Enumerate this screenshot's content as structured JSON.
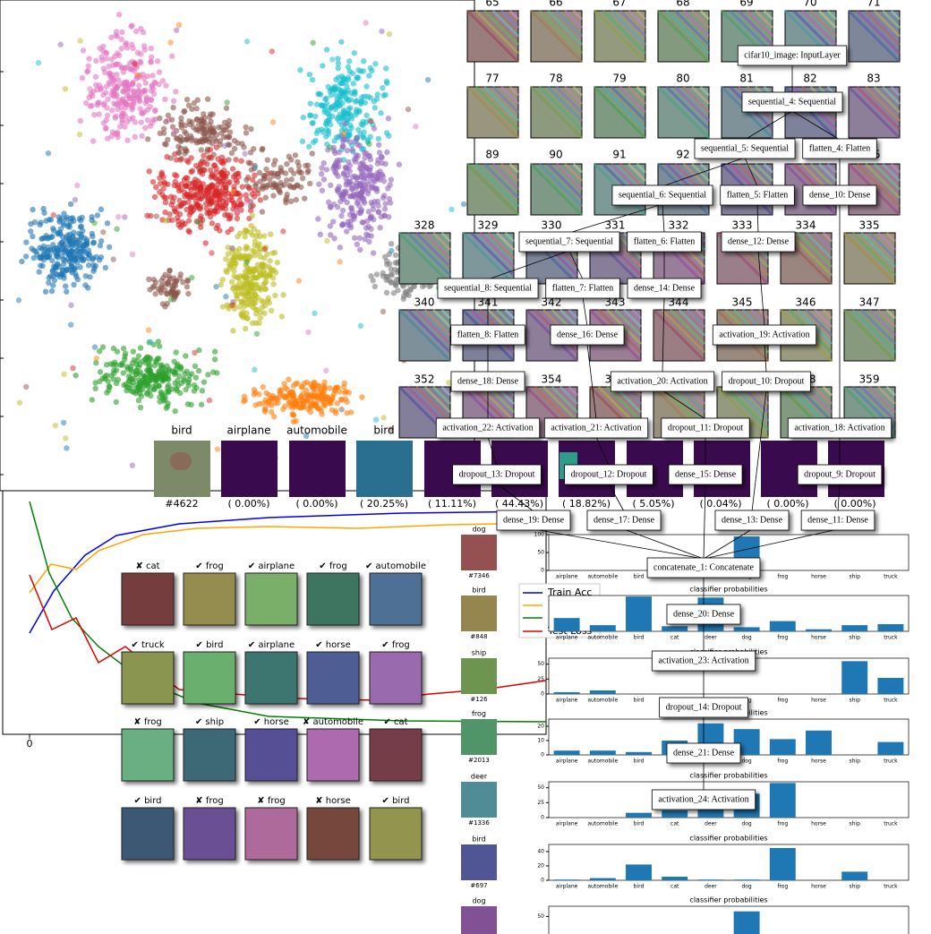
{
  "filters": {
    "rows": [
      [
        "65",
        "66",
        "67",
        "68",
        "69",
        "70",
        "71"
      ],
      [
        "77",
        "78",
        "79",
        "80",
        "81",
        "82",
        "83"
      ],
      [
        "89",
        "90",
        "91",
        "92",
        "93",
        "94",
        "95"
      ],
      [
        "328",
        "329",
        "330",
        "331",
        "332",
        "333",
        "334",
        "335"
      ],
      [
        "340",
        "341",
        "342",
        "343",
        "344",
        "345",
        "346",
        "347"
      ],
      [
        "352",
        "353",
        "354",
        "355",
        "356",
        "357",
        "358",
        "359"
      ]
    ]
  },
  "graph": {
    "nodes": [
      "cifar10_image: InputLayer",
      "sequential_4: Sequential",
      "sequential_5: Sequential",
      "flatten_4: Flatten",
      "sequential_6: Sequential",
      "flatten_5: Flatten",
      "dense_10: Dense",
      "sequential_7: Sequential",
      "flatten_6: Flatten",
      "dense_12: Dense",
      "sequential_8: Sequential",
      "flatten_7: Flatten",
      "dense_14: Dense",
      "flatten_8: Flatten",
      "dense_16: Dense",
      "activation_19: Activation",
      "dense_18: Dense",
      "activation_20: Activation",
      "dropout_10: Dropout",
      "activation_22: Activation",
      "activation_21: Activation",
      "dropout_11: Dropout",
      "activation_18: Activation",
      "dropout_13: Dropout",
      "dropout_12: Dropout",
      "dense_15: Dense",
      "dropout_9: Dropout",
      "dense_19: Dense",
      "dense_17: Dense",
      "dense_13: Dense",
      "dense_11: Dense",
      "concatenate_1: Concatenate",
      "dense_20: Dense",
      "activation_23: Activation",
      "dropout_14: Dropout",
      "dense_21: Dense",
      "activation_24: Activation"
    ]
  },
  "prediction": {
    "labels": [
      "bird",
      "airplane",
      "automobile",
      "bird"
    ],
    "id": "#4622",
    "scores": [
      "( 0.00%)",
      "( 0.00%)",
      "( 20.25%)",
      "( 11.11%)",
      "( 44.43%)",
      "( 18.82%)",
      "( 5.05%)",
      "( 0.04%)",
      "( 0.00%)",
      "( 0.00%)"
    ]
  },
  "training": {
    "legend": [
      "Train Acc",
      "Test Loss"
    ],
    "xtick": "0"
  },
  "samples": {
    "captions": [
      [
        "✘ cat",
        "✔ frog",
        "✔ airplane",
        "✔ frog",
        "✔ automobile"
      ],
      [
        "✔ truck",
        "✔ bird",
        "✔ airplane",
        "✔ horse",
        "✔ frog"
      ],
      [
        "✘ frog",
        "✔ ship",
        "✔ horse",
        "✘ automobile",
        "✔ cat"
      ],
      [
        "✔ bird",
        "✘ frog",
        "✘ frog",
        "✘ horse",
        "✔ bird"
      ]
    ]
  },
  "chart_data": [
    {
      "type": "bar",
      "label": "dog",
      "id": "#7346",
      "categories": [
        "airplane",
        "automobile",
        "bird",
        "cat",
        "deer",
        "dog",
        "frog",
        "horse",
        "ship",
        "truck"
      ],
      "values": [
        0,
        0,
        0,
        0,
        0,
        95,
        0,
        0,
        0,
        0
      ],
      "ylim": [
        0,
        100
      ],
      "yticks": [
        0,
        50,
        100
      ],
      "color": "#1f77b4"
    },
    {
      "type": "bar",
      "title": "classifier probabilities",
      "label": "bird",
      "id": "#848",
      "categories": [
        "airplane",
        "automobile",
        "bird",
        "cat",
        "deer",
        "dog",
        "frog",
        "horse",
        "ship",
        "truck"
      ],
      "values": [
        13,
        6,
        34,
        5,
        33,
        4,
        10,
        2,
        6,
        7
      ],
      "ylim": [
        0,
        35
      ],
      "yticks": [],
      "color": "#1f77b4"
    },
    {
      "type": "bar",
      "title": "classifier probabilities",
      "label": "ship",
      "id": "#126",
      "categories": [
        "airplane",
        "automobile",
        "bird",
        "cat",
        "deer",
        "dog",
        "frog",
        "horse",
        "ship",
        "truck"
      ],
      "values": [
        3,
        6,
        0,
        0,
        0,
        0,
        0,
        0,
        55,
        27
      ],
      "ylim": [
        0,
        60
      ],
      "yticks": [
        0,
        25,
        50
      ],
      "color": "#1f77b4"
    },
    {
      "type": "bar",
      "title": "classifier probabilities",
      "label": "frog",
      "id": "#2013",
      "categories": [
        "airplane",
        "automobile",
        "bird",
        "cat",
        "deer",
        "dog",
        "frog",
        "horse",
        "ship",
        "truck"
      ],
      "values": [
        3,
        3,
        2,
        10,
        22,
        18,
        11,
        17,
        0,
        9
      ],
      "ylim": [
        0,
        25
      ],
      "yticks": [
        0,
        10,
        20
      ],
      "color": "#1f77b4"
    },
    {
      "type": "bar",
      "title": "classifier probabilities",
      "label": "deer",
      "id": "#1336",
      "categories": [
        "airplane",
        "automobile",
        "bird",
        "cat",
        "deer",
        "dog",
        "frog",
        "horse",
        "ship",
        "truck"
      ],
      "values": [
        0,
        0,
        8,
        12,
        25,
        40,
        58,
        0,
        0,
        0
      ],
      "ylim": [
        0,
        60
      ],
      "yticks": [
        0,
        25,
        50
      ],
      "color": "#1f77b4"
    },
    {
      "type": "bar",
      "title": "classifier probabilities",
      "label": "bird",
      "id": "#697",
      "categories": [
        "airplane",
        "automobile",
        "bird",
        "cat",
        "deer",
        "dog",
        "frog",
        "horse",
        "ship",
        "truck"
      ],
      "values": [
        1,
        3,
        22,
        5,
        1,
        1,
        45,
        0,
        12,
        0
      ],
      "ylim": [
        0,
        50
      ],
      "yticks": [
        0,
        20,
        40
      ],
      "color": "#1f77b4"
    },
    {
      "type": "bar",
      "title": "classifier probabilities",
      "label": "dog",
      "categories": [
        "airplane",
        "automobile",
        "bird",
        "cat",
        "deer",
        "dog",
        "frog",
        "horse",
        "ship",
        "truck"
      ],
      "values": [
        0,
        0,
        0,
        0,
        0,
        60,
        0,
        0,
        0,
        0
      ],
      "ylim": [
        0,
        70
      ],
      "yticks": [
        50
      ],
      "color": "#1f77b4"
    }
  ]
}
